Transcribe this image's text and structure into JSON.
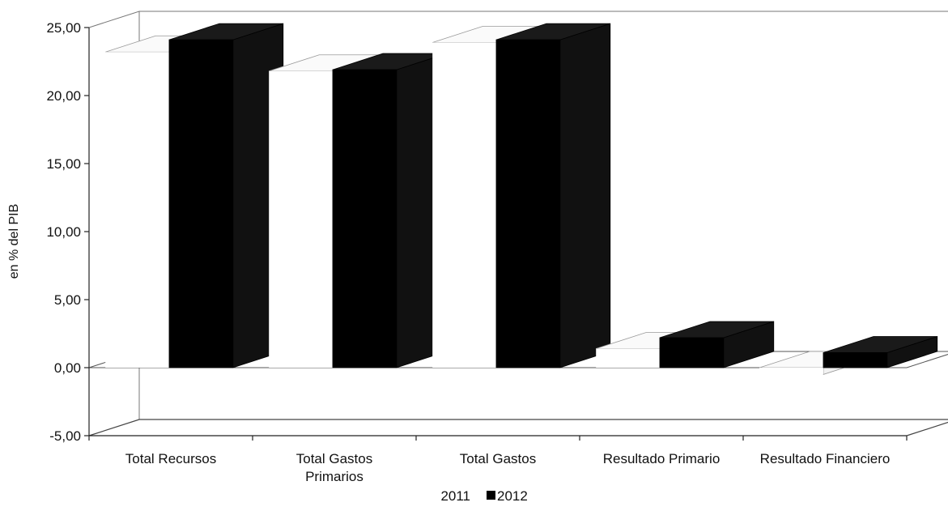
{
  "chart_data": {
    "type": "bar",
    "categories": [
      "Total Recursos",
      "Total Gastos\nPrimarios",
      "Total Gastos",
      "Resultado Primario",
      "Resultado Financiero"
    ],
    "series": [
      {
        "name": "2011",
        "values": [
          23.2,
          21.8,
          23.9,
          1.4,
          -0.5
        ]
      },
      {
        "name": "2012",
        "values": [
          24.1,
          21.9,
          24.1,
          2.2,
          1.1
        ]
      }
    ],
    "ylabel": "en % del PIB",
    "ylim": [
      -5,
      25
    ],
    "yticks": [
      -5,
      0,
      5,
      10,
      15,
      20,
      25
    ],
    "ytick_labels": [
      "-5,00",
      "0,00",
      "5,00",
      "10,00",
      "15,00",
      "20,00",
      "25,00"
    ],
    "legend_position": "bottom",
    "grid": false,
    "colors": {
      "2011": "#ffffff",
      "2012": "#000000"
    }
  }
}
